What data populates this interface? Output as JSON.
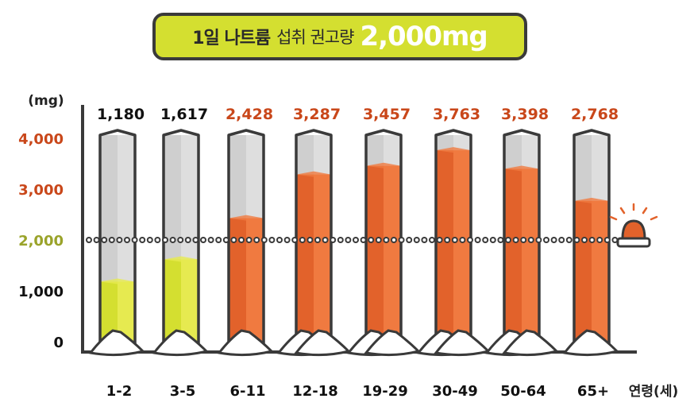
{
  "title": {
    "part1": "1일 나트륨",
    "part2": "섭취 권고량",
    "part3": "2,000mg"
  },
  "chart_data": {
    "type": "bar",
    "ylabel": "(mg)",
    "xlabel": "연령(세)",
    "categories": [
      "1-2",
      "3-5",
      "6-11",
      "12-18",
      "19-29",
      "30-49",
      "50-64",
      "65+"
    ],
    "values": [
      1180,
      1617,
      2428,
      3287,
      3457,
      3763,
      3398,
      2768
    ],
    "value_labels": [
      "1,180",
      "1,617",
      "2,428",
      "3,287",
      "3,457",
      "3,763",
      "3,398",
      "2,768"
    ],
    "yticks": [
      0,
      1000,
      2000,
      3000,
      4000
    ],
    "ytick_labels": [
      "0",
      "1,000",
      "2,000",
      "3,000",
      "4,000"
    ],
    "ylim": [
      0,
      4000
    ],
    "reference_line": {
      "value": 2000,
      "style": "dotted"
    },
    "grid": false,
    "colors": {
      "below": "#d4df30",
      "above": "#e2622b",
      "empty": "#d0d0d0",
      "label_dark": "#111111",
      "label_green": "#9aa32a",
      "label_orange": "#c9471a"
    }
  }
}
